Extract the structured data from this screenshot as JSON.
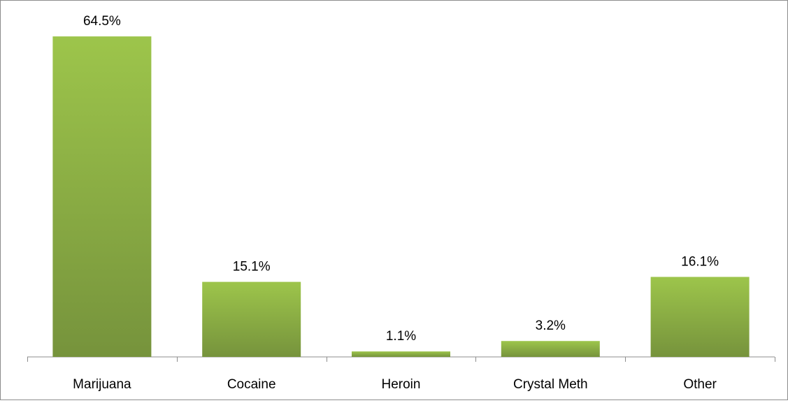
{
  "chart_data": {
    "type": "bar",
    "categories": [
      "Marijuana",
      "Cocaine",
      "Heroin",
      "Crystal Meth",
      "Other"
    ],
    "values": [
      64.5,
      15.1,
      1.1,
      3.2,
      16.1
    ],
    "data_labels": [
      "64.5%",
      "15.1%",
      "1.1%",
      "3.2%",
      "16.1%"
    ],
    "unit": "%",
    "title": "",
    "xlabel": "",
    "ylabel": "",
    "ylim": [
      0,
      70
    ],
    "grid": false,
    "legend": "none",
    "bar_color_top": "#9dc54b",
    "bar_color_bottom": "#76933c"
  }
}
